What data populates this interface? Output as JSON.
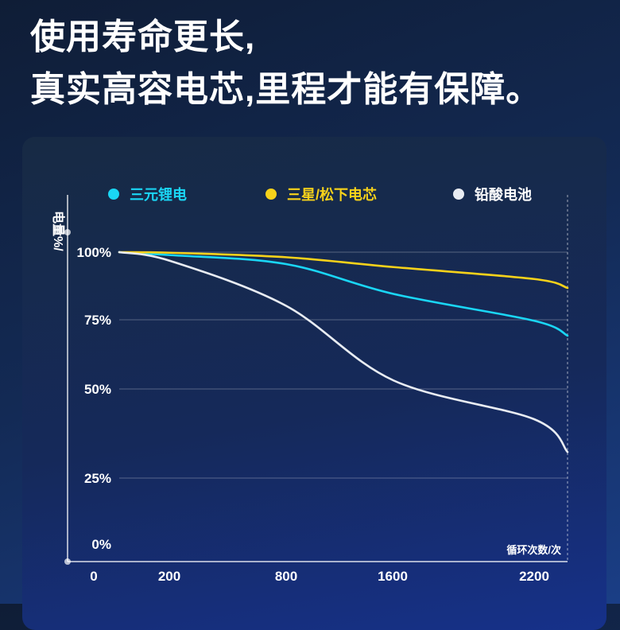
{
  "headline": {
    "line1": "使用寿命更长,",
    "line2": "真实高容电芯,里程才能有保障。"
  },
  "chart_data": {
    "type": "line",
    "ylabel": "电量\n%/",
    "xlabel": "循环次数/次",
    "x_ticks": [
      "0",
      "200",
      "800",
      "1600",
      "2200"
    ],
    "y_ticks": [
      "100%",
      "75%",
      "50%",
      "25%",
      "0%"
    ],
    "ylim": [
      0,
      100
    ],
    "grid": true,
    "legend_position": "top",
    "series": [
      {
        "name": "三元锂电",
        "color": "#1ad6f5",
        "x": [
          0,
          200,
          800,
          1600,
          2200,
          2400
        ],
        "y": [
          100,
          99,
          96,
          86,
          77,
          72
        ]
      },
      {
        "name": "三星/松下电芯",
        "color": "#f7d21a",
        "x": [
          0,
          200,
          800,
          1600,
          2200,
          2400
        ],
        "y": [
          100,
          99.8,
          98.3,
          95,
          91,
          88
        ]
      },
      {
        "name": "铅酸电池",
        "color": "#e8ecf2",
        "x": [
          0,
          200,
          800,
          1600,
          2200,
          2400
        ],
        "y": [
          100,
          97,
          82,
          57,
          44,
          33
        ]
      }
    ]
  }
}
